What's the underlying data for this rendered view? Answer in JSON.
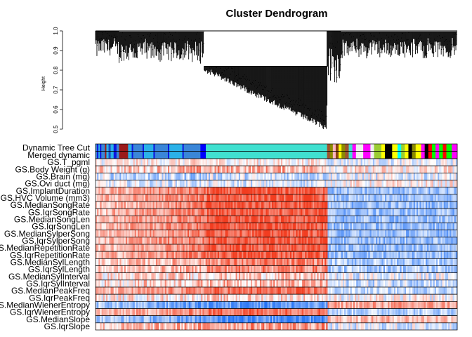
{
  "chart_data": {
    "type": "heatmap",
    "title": "Cluster Dendrogram",
    "ylabel": "Height",
    "ylim": [
      0.5,
      1.0
    ],
    "yticks": [
      "0.5",
      "0.6",
      "0.7",
      "0.8",
      "0.9",
      "1.0"
    ],
    "dendrogram": {
      "description_segments": [
        {
          "from": 0.0,
          "to": 0.065,
          "merge_height": 1.0,
          "min_leaf_height": 0.82
        },
        {
          "from": 0.065,
          "to": 0.3,
          "merge_height": 0.995,
          "min_leaf_height": 0.78
        },
        {
          "from": 0.3,
          "to": 0.64,
          "merge_height": 0.82,
          "min_leaf_height": 0.52
        },
        {
          "from": 0.64,
          "to": 0.68,
          "merge_height": 1.0,
          "min_leaf_height": 0.62
        },
        {
          "from": 0.68,
          "to": 1.0,
          "merge_height": 0.995,
          "min_leaf_height": 0.82
        }
      ]
    },
    "module_row_labels": [
      "Dynamic Tree Cut",
      "Merged dynamic"
    ],
    "module_segments": [
      {
        "from": 0.0,
        "to": 0.004,
        "color": "#3a86d8"
      },
      {
        "from": 0.004,
        "to": 0.008,
        "color": "#0d16e0"
      },
      {
        "from": 0.008,
        "to": 0.012,
        "color": "#2bb1e8"
      },
      {
        "from": 0.012,
        "to": 0.016,
        "color": "#0d16e0"
      },
      {
        "from": 0.016,
        "to": 0.026,
        "color": "#3a86d8"
      },
      {
        "from": 0.026,
        "to": 0.03,
        "color": "#9b1a1a"
      },
      {
        "from": 0.03,
        "to": 0.036,
        "color": "#2bb1e8"
      },
      {
        "from": 0.036,
        "to": 0.042,
        "color": "#1a4dc8"
      },
      {
        "from": 0.042,
        "to": 0.05,
        "color": "#2bb1e8"
      },
      {
        "from": 0.05,
        "to": 0.058,
        "color": "#0d16e0"
      },
      {
        "from": 0.058,
        "to": 0.065,
        "color": "#3a86d8"
      },
      {
        "from": 0.065,
        "to": 0.09,
        "color": "#9b1a1a"
      },
      {
        "from": 0.09,
        "to": 0.1,
        "color": "#2bb1e8"
      },
      {
        "from": 0.1,
        "to": 0.104,
        "color": "#0d16e0"
      },
      {
        "from": 0.104,
        "to": 0.13,
        "color": "#3a86d8"
      },
      {
        "from": 0.13,
        "to": 0.134,
        "color": "#0d16e0"
      },
      {
        "from": 0.134,
        "to": 0.16,
        "color": "#2bb1e8"
      },
      {
        "from": 0.16,
        "to": 0.164,
        "color": "#0d16e0"
      },
      {
        "from": 0.164,
        "to": 0.2,
        "color": "#3a86d8"
      },
      {
        "from": 0.2,
        "to": 0.204,
        "color": "#0d16e0"
      },
      {
        "from": 0.204,
        "to": 0.24,
        "color": "#2bb1e8"
      },
      {
        "from": 0.24,
        "to": 0.244,
        "color": "#0d16e0"
      },
      {
        "from": 0.244,
        "to": 0.29,
        "color": "#3a86d8"
      },
      {
        "from": 0.29,
        "to": 0.305,
        "color": "#0000ff"
      },
      {
        "from": 0.305,
        "to": 0.64,
        "color": "#40e0d0"
      },
      {
        "from": 0.64,
        "to": 0.648,
        "color": "#a0522d"
      },
      {
        "from": 0.648,
        "to": 0.656,
        "color": "#8b8b00"
      },
      {
        "from": 0.656,
        "to": 0.664,
        "color": "#ffb6c1"
      },
      {
        "from": 0.664,
        "to": 0.672,
        "color": "#8b4513"
      },
      {
        "from": 0.672,
        "to": 0.68,
        "color": "#ffff00"
      },
      {
        "from": 0.68,
        "to": 0.69,
        "color": "#8b8b00"
      },
      {
        "from": 0.69,
        "to": 0.7,
        "color": "#a0522d"
      },
      {
        "from": 0.7,
        "to": 0.71,
        "color": "#40e0d0"
      },
      {
        "from": 0.71,
        "to": 0.72,
        "color": "#ff00ff"
      },
      {
        "from": 0.72,
        "to": 0.74,
        "color": "#f0f0f0"
      },
      {
        "from": 0.74,
        "to": 0.76,
        "color": "#ff00ff"
      },
      {
        "from": 0.76,
        "to": 0.77,
        "color": "#f0f0f0"
      },
      {
        "from": 0.77,
        "to": 0.79,
        "color": "#9acd32"
      },
      {
        "from": 0.79,
        "to": 0.8,
        "color": "#ffff00"
      },
      {
        "from": 0.8,
        "to": 0.82,
        "color": "#000000"
      },
      {
        "from": 0.82,
        "to": 0.835,
        "color": "#ffff00"
      },
      {
        "from": 0.835,
        "to": 0.845,
        "color": "#00ffff"
      },
      {
        "from": 0.845,
        "to": 0.855,
        "color": "#9acd32"
      },
      {
        "from": 0.855,
        "to": 0.865,
        "color": "#ffff00"
      },
      {
        "from": 0.865,
        "to": 0.875,
        "color": "#000000"
      },
      {
        "from": 0.875,
        "to": 0.885,
        "color": "#8b8b00"
      },
      {
        "from": 0.885,
        "to": 0.9,
        "color": "#ffff00"
      },
      {
        "from": 0.9,
        "to": 0.91,
        "color": "#ff00ff"
      },
      {
        "from": 0.91,
        "to": 0.92,
        "color": "#000000"
      },
      {
        "from": 0.92,
        "to": 0.93,
        "color": "#ff0000"
      },
      {
        "from": 0.93,
        "to": 0.94,
        "color": "#00ff00"
      },
      {
        "from": 0.94,
        "to": 0.95,
        "color": "#ff00ff"
      },
      {
        "from": 0.95,
        "to": 0.96,
        "color": "#00ff00"
      },
      {
        "from": 0.96,
        "to": 0.97,
        "color": "#ff0000"
      },
      {
        "from": 0.97,
        "to": 0.985,
        "color": "#00ff00"
      },
      {
        "from": 0.985,
        "to": 1.0,
        "color": "#ff00ff"
      }
    ],
    "trait_rows": [
      {
        "label": "GS.T_pgml",
        "left": 0.08,
        "mid": 0.08,
        "right": -0.1,
        "noise": 0.35
      },
      {
        "label": "GS.Body Weight (g)",
        "left": 0.35,
        "mid": 0.4,
        "right": 0.1,
        "noise": 0.4
      },
      {
        "label": "GS.Brain (mg)",
        "left": -0.3,
        "mid": -0.2,
        "right": -0.1,
        "noise": 0.4
      },
      {
        "label": "GS.Ovi duct (mg)",
        "left": -0.15,
        "mid": -0.15,
        "right": 0.05,
        "noise": 0.35
      },
      {
        "label": "GS.ImplantDuration",
        "left": 0.55,
        "mid": 0.85,
        "right": -0.45,
        "noise": 0.3
      },
      {
        "label": "GS.HVC Volume (mm3)",
        "left": 0.55,
        "mid": 0.85,
        "right": -0.45,
        "noise": 0.3
      },
      {
        "label": "GS.MedianSongRate",
        "left": 0.55,
        "mid": 0.85,
        "right": -0.45,
        "noise": 0.3
      },
      {
        "label": "GS.IqrSongRate",
        "left": 0.55,
        "mid": 0.85,
        "right": -0.45,
        "noise": 0.3
      },
      {
        "label": "GS.MedianSongLen",
        "left": 0.55,
        "mid": 0.85,
        "right": -0.45,
        "noise": 0.3
      },
      {
        "label": "GS.IqrSongLen",
        "left": 0.55,
        "mid": 0.85,
        "right": -0.45,
        "noise": 0.3
      },
      {
        "label": "GS.MedianSylperSong",
        "left": 0.55,
        "mid": 0.85,
        "right": -0.45,
        "noise": 0.3
      },
      {
        "label": "GS.IqrSylperSong",
        "left": 0.55,
        "mid": 0.85,
        "right": -0.45,
        "noise": 0.3
      },
      {
        "label": "GS.MedianRepetitionRate",
        "left": 0.55,
        "mid": 0.85,
        "right": -0.45,
        "noise": 0.3
      },
      {
        "label": "GS.IqrRepetitionRate",
        "left": 0.55,
        "mid": 0.85,
        "right": -0.45,
        "noise": 0.3
      },
      {
        "label": "GS.MedianSylLength",
        "left": 0.35,
        "mid": 0.6,
        "right": -0.35,
        "noise": 0.35
      },
      {
        "label": "GS.IqrSylLength",
        "left": 0.35,
        "mid": 0.6,
        "right": -0.35,
        "noise": 0.35
      },
      {
        "label": "GS.MedianSylInterval",
        "left": 0.2,
        "mid": 0.25,
        "right": -0.1,
        "noise": 0.4
      },
      {
        "label": "GS.IqrSylInterval",
        "left": 0.25,
        "mid": 0.35,
        "right": -0.2,
        "noise": 0.4
      },
      {
        "label": "GS.MedianPeakFreq",
        "left": 0.5,
        "mid": 0.7,
        "right": -0.25,
        "noise": 0.3
      },
      {
        "label": "GS.IqrPeakFreq",
        "left": 0.15,
        "mid": 0.2,
        "right": 0.0,
        "noise": 0.4
      },
      {
        "label": "GS.MedianWienerEntropy",
        "left": -0.6,
        "mid": -0.7,
        "right": 0.45,
        "noise": 0.3
      },
      {
        "label": "GS.IqrWienerEntropy",
        "left": 0.5,
        "mid": 0.75,
        "right": -0.3,
        "noise": 0.3
      },
      {
        "label": "GS.MedianSlope",
        "left": -0.55,
        "mid": -0.75,
        "right": 0.35,
        "noise": 0.3
      },
      {
        "label": "GS.IqrSlope",
        "left": 0.35,
        "mid": 0.5,
        "right": -0.15,
        "noise": 0.4
      }
    ],
    "color_scale": {
      "negative": "#2171f5",
      "zero": "#ffffff",
      "positive": "#f23d20"
    }
  }
}
